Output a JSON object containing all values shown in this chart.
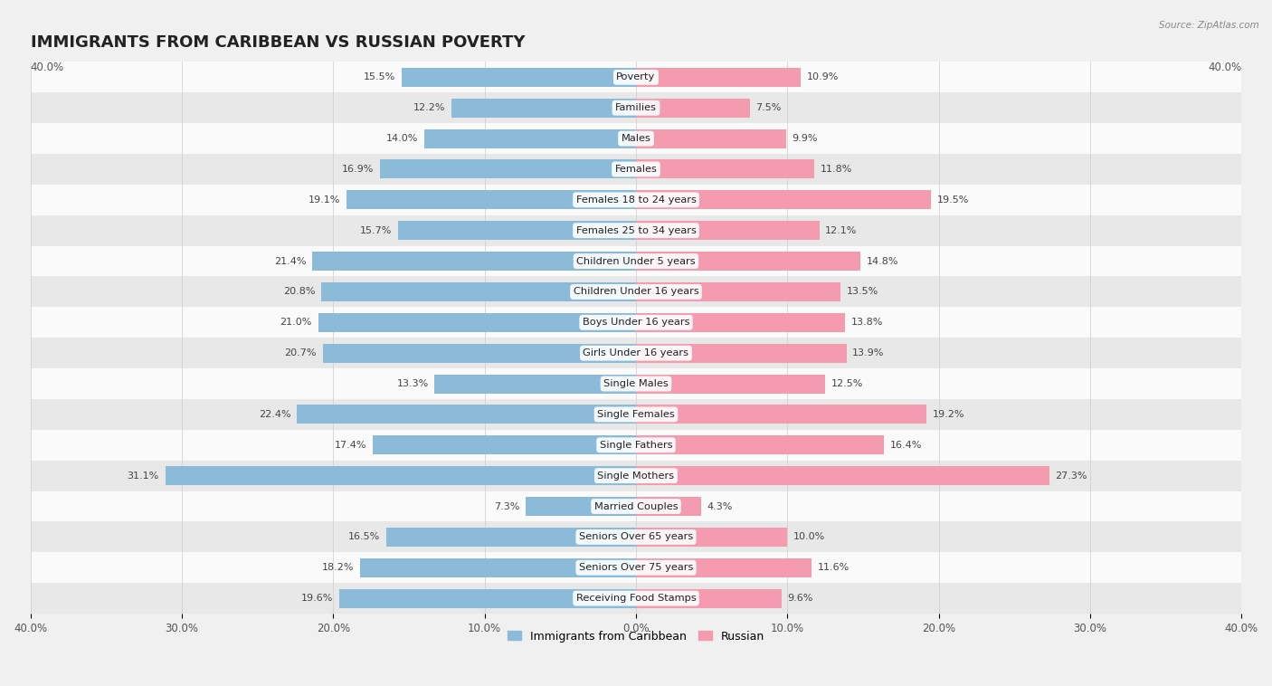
{
  "title": "IMMIGRANTS FROM CARIBBEAN VS RUSSIAN POVERTY",
  "source": "Source: ZipAtlas.com",
  "categories": [
    "Poverty",
    "Families",
    "Males",
    "Females",
    "Females 18 to 24 years",
    "Females 25 to 34 years",
    "Children Under 5 years",
    "Children Under 16 years",
    "Boys Under 16 years",
    "Girls Under 16 years",
    "Single Males",
    "Single Females",
    "Single Fathers",
    "Single Mothers",
    "Married Couples",
    "Seniors Over 65 years",
    "Seniors Over 75 years",
    "Receiving Food Stamps"
  ],
  "caribbean_values": [
    15.5,
    12.2,
    14.0,
    16.9,
    19.1,
    15.7,
    21.4,
    20.8,
    21.0,
    20.7,
    13.3,
    22.4,
    17.4,
    31.1,
    7.3,
    16.5,
    18.2,
    19.6
  ],
  "russian_values": [
    10.9,
    7.5,
    9.9,
    11.8,
    19.5,
    12.1,
    14.8,
    13.5,
    13.8,
    13.9,
    12.5,
    19.2,
    16.4,
    27.3,
    4.3,
    10.0,
    11.6,
    9.6
  ],
  "caribbean_color": "#8BBBD9",
  "russian_color": "#F49BB0",
  "caribbean_label": "Immigrants from Caribbean",
  "russian_label": "Russian",
  "xlim": 40.0,
  "background_color": "#f0f0f0",
  "row_light": "#fafafa",
  "row_dark": "#e8e8e8",
  "bar_height": 0.62,
  "title_fontsize": 13,
  "label_fontsize": 8.2,
  "value_fontsize": 8.0,
  "axis_tick_fontsize": 8.5
}
